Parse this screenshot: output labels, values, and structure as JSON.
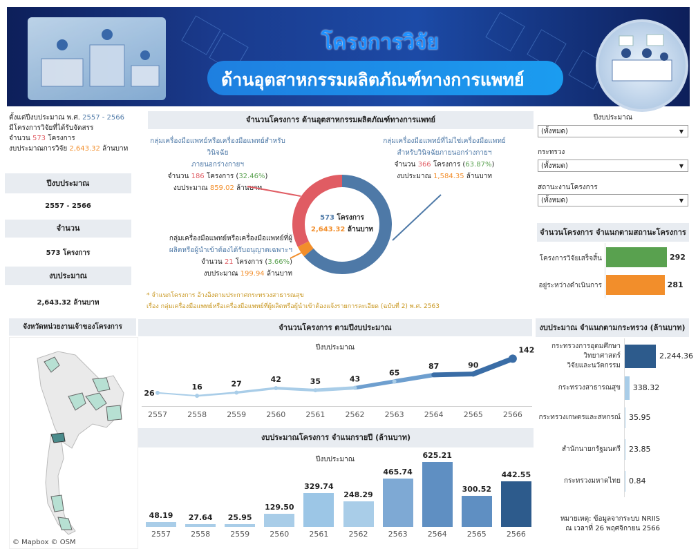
{
  "banner": {
    "title": "โครงการวิจัย",
    "subtitle": "ด้านอุตสาหกรรมผลิตภัณฑ์ทางการแพทย์"
  },
  "summary": {
    "line1_prefix": "ตั้งแต่ปีงบประมาณ พ.ศ.",
    "line1_range": "2557 - 2566",
    "line2": "มีโครงการวิจัยที่ได้รับจัดสรร",
    "line3_prefix": "จำนวน",
    "line3_count": "573",
    "line3_suffix": "โครงการ",
    "line4_prefix": "งบประมาณการวิจัย",
    "line4_amount": "2,643.32",
    "line4_suffix": "ล้านบาท"
  },
  "kpis": [
    {
      "label": "ปีงบประมาณ",
      "value": "2557 - 2566"
    },
    {
      "label": "จำนวน",
      "value": "573 โครงการ"
    },
    {
      "label": "งบประมาณ",
      "value": "2,643.32 ล้านบาท"
    }
  ],
  "donut": {
    "header": "จำนวนโครงการ ด้านอุตสาหกรรมผลิตภัณฑ์ทางการแพทย์",
    "center_count": "573",
    "center_count_unit": "โครงการ",
    "center_amount": "2,643.32",
    "center_amount_unit": "ล้านบาท",
    "groups": [
      {
        "title1": "กลุ่มเครื่องมือแพทย์หรือเครื่องมือแพทย์สำหรับวินิจฉัย",
        "title2": "ภายนอกร่างกายฯ",
        "count": "186",
        "pct": "32.46%",
        "budget": "859.02",
        "color": "#e05c63"
      },
      {
        "title1": "กลุ่มเครื่องมือแพทย์ที่ไม่ใช่เครื่องมือแพทย์",
        "title2": "สำหรับวินิจฉัยภายนอกร่างกายฯ",
        "count": "366",
        "pct": "63.87%",
        "budget": "1,584.35",
        "color": "#4e79a7"
      },
      {
        "title1": "กลุ่มเครื่องมือแพทย์หรือเครื่องมือแพทย์ที่ผู้",
        "title2": "ผลิตหรือผู้นำเข้าต้องได้รับอนุญาตเฉพาะฯ",
        "count": "21",
        "pct": "3.66%",
        "budget": "199.94",
        "color": "#f28e2b"
      }
    ],
    "count_prefix": "จำนวน",
    "count_suffix": "โครงการ",
    "budget_prefix": "งบประมาณ",
    "budget_suffix": "ล้านบาท",
    "note1": "* จำแนกโครงการ อ้างอิงตามประกาศกระทรวงสาธารณสุข",
    "note2": "เรื่อง กลุ่มเครื่องมือแพทย์หรือเครื่องมือแพทย์ที่ผู้ผลิตหรือผู้นำเข้าต้องแจ้งรายการละเอียด (ฉบับที่ 2) พ.ศ. 2563"
  },
  "filters": {
    "year_label": "ปีงบประมาณ",
    "year_value": "(ทั้งหมด)",
    "ministry_label": "กระทรวง",
    "ministry_value": "(ทั้งหมด)",
    "status_label": "สถานะงานโครงการ",
    "status_value": "(ทั้งหมด)"
  },
  "status_chart": {
    "header": "จำนวนโครงการ จำแนกตามสถานะโครงการ",
    "items": [
      {
        "label": "โครงการวิจัยเสร็จสิ้น",
        "value": 292,
        "color": "#59a14f"
      },
      {
        "label": "อยู่ระหว่างดำเนินการ",
        "value": 281,
        "color": "#f28e2b"
      }
    ]
  },
  "map": {
    "header": "จังหวัดหน่วยงานเจ้าของโครงการ",
    "credit": "© Mapbox © OSM"
  },
  "chart_data": [
    {
      "type": "line",
      "title": "จำนวนโครงการ ตามปีงบประมาณ",
      "subtitle": "ปีงบประมาณ",
      "categories": [
        "2557",
        "2558",
        "2559",
        "2560",
        "2561",
        "2562",
        "2563",
        "2564",
        "2565",
        "2566"
      ],
      "values": [
        26,
        16,
        27,
        42,
        35,
        43,
        65,
        87,
        90,
        142
      ]
    },
    {
      "type": "bar",
      "title": "งบประมาณโครงการ จำแนกรายปี (ล้านบาท)",
      "subtitle": "ปีงบประมาณ",
      "categories": [
        "2557",
        "2558",
        "2559",
        "2560",
        "2561",
        "2562",
        "2563",
        "2564",
        "2565",
        "2566"
      ],
      "values": [
        48.19,
        27.64,
        25.95,
        129.5,
        329.74,
        248.29,
        465.74,
        625.21,
        300.52,
        442.55
      ],
      "value_labels": [
        "48.19",
        "27.64",
        "25.95",
        "129.50",
        "329.74",
        "248.29",
        "465.74",
        "625.21",
        "300.52",
        "442.55"
      ]
    },
    {
      "type": "bar",
      "title": "งบประมาณ จำแนกตามกระทรวง (ล้านบาท)",
      "categories": [
        "กระทรวงการอุดมศึกษา วิทยาศาสตร์ วิจัยและนวัตกรรม",
        "กระทรวงสาธารณสุข",
        "กระทรวงเกษตรและสหกรณ์",
        "สำนักนายกรัฐมนตรี",
        "กระทรวงมหาดไทย"
      ],
      "values": [
        2244.36,
        338.32,
        35.95,
        23.85,
        0.84
      ],
      "value_labels": [
        "2,244.36",
        "338.32",
        "35.95",
        "23.85",
        "0.84"
      ]
    }
  ],
  "ministry_labels": [
    [
      "กระทรวงการอุดมศึกษา",
      "วิทยาศาสตร์",
      "วิจัยและนวัตกรรม"
    ],
    [
      "กระทรวงสาธารณสุข"
    ],
    [
      "กระทรวงเกษตรและสหกรณ์"
    ],
    [
      "สำนักนายกรัฐมนตรี"
    ],
    [
      "กระทรวงมหาดไทย"
    ]
  ],
  "footnote": {
    "line1": "หมายเหตุ: ข้อมูลจากระบบ NRIIS",
    "line2": "ณ เวลาที่ 26 พฤศจิกายน 2566"
  }
}
